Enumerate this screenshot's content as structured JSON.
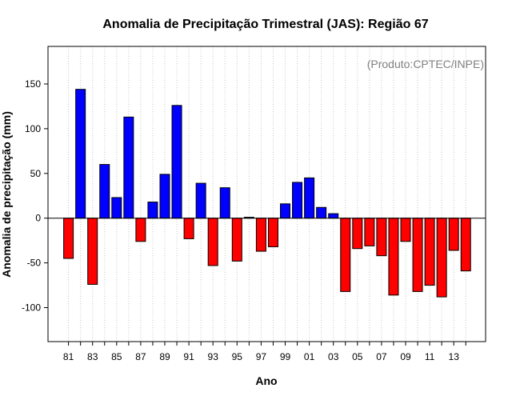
{
  "chart_data": {
    "type": "bar",
    "title": "Anomalia de Precipitação Trimestral (JAS): Região 67",
    "xlabel": "Ano",
    "ylabel": "Anomalia de precipitação (mm)",
    "annotation": "(Produto:CPTEC/INPE)",
    "ylim": [
      -138,
      192
    ],
    "yticks": [
      -100,
      -50,
      0,
      50,
      100,
      150
    ],
    "grid": "vertical dotted",
    "positive_color": "#0000ff",
    "negative_color": "#ff0000",
    "categories": [
      "1981",
      "1982",
      "1983",
      "1984",
      "1985",
      "1986",
      "1987",
      "1988",
      "1989",
      "1990",
      "1991",
      "1992",
      "1993",
      "1994",
      "1995",
      "1996",
      "1997",
      "1998",
      "1999",
      "2000",
      "2001",
      "2002",
      "2003",
      "2004",
      "2005",
      "2006",
      "2007",
      "2008",
      "2009",
      "2010",
      "2011",
      "2012",
      "2013",
      "2014"
    ],
    "values": [
      -45,
      144,
      -74,
      60,
      23,
      113,
      -26,
      18,
      49,
      126,
      -23,
      39,
      -53,
      34,
      -48,
      1,
      -37,
      -32,
      16,
      40,
      45,
      12,
      5,
      -82,
      -34,
      -31,
      -42,
      -86,
      -26,
      -82,
      -75,
      -88,
      -36,
      -59
    ],
    "xtick_labels": [
      "81",
      "83",
      "85",
      "87",
      "89",
      "91",
      "93",
      "95",
      "97",
      "99",
      "01",
      "03",
      "05",
      "07",
      "09",
      "11",
      "13"
    ]
  }
}
